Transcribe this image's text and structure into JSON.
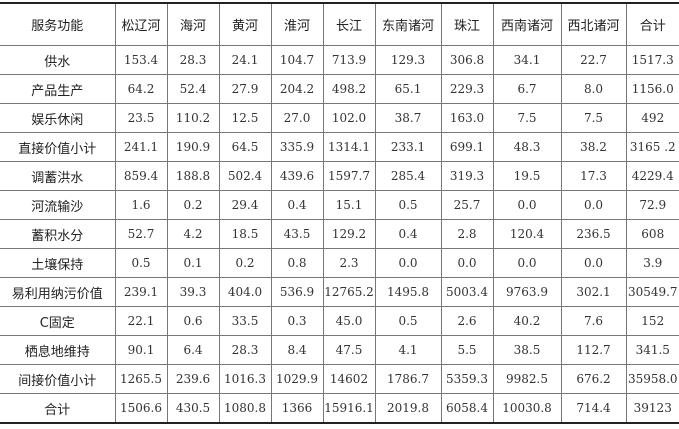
{
  "table": {
    "headers": [
      "服务功能",
      "松辽河",
      "海河",
      "黄河",
      "淮河",
      "长江",
      "东南诸河",
      "珠江",
      "西南诸河",
      "西北诸河",
      "合计"
    ],
    "rows": [
      [
        "供水",
        "153.4",
        "28.3",
        "24.1",
        "104.7",
        "713.9",
        "129.3",
        "306.8",
        "34.1",
        "22.7",
        "1517.3"
      ],
      [
        "产品生产",
        "64.2",
        "52.4",
        "27.9",
        "204.2",
        "498.2",
        "65.1",
        "229.3",
        "6.7",
        "8.0",
        "1156.0"
      ],
      [
        "娱乐休闲",
        "23.5",
        "110.2",
        "12.5",
        "27.0",
        "102.0",
        "38.7",
        "163.0",
        "7.5",
        "7.5",
        "492"
      ],
      [
        "直接价值小计",
        "241.1",
        "190.9",
        "64.5",
        "335.9",
        "1314.1",
        "233.1",
        "699.1",
        "48.3",
        "38.2",
        "3165 .2"
      ],
      [
        "调蓄洪水",
        "859.4",
        "188.8",
        "502.4",
        "439.6",
        "1597.7",
        "285.4",
        "319.3",
        "19.5",
        "17.3",
        "4229.4"
      ],
      [
        "河流输沙",
        "1.6",
        "0.2",
        "29.4",
        "0.4",
        "15.1",
        "0.5",
        "25.7",
        "0.0",
        "0.0",
        "72.9"
      ],
      [
        "蓄积水分",
        "52.7",
        "4.2",
        "18.5",
        "43.5",
        "129.2",
        "0.4",
        "2.8",
        "120.4",
        "236.5",
        "608"
      ],
      [
        "土壤保持",
        "0.5",
        "0.1",
        "0.2",
        "0.8",
        "2.3",
        "0.0",
        "0.0",
        "0.0",
        "0.0",
        "3.9"
      ],
      [
        "易利用纳污价值",
        "239.1",
        "39.3",
        "404.0",
        "536.9",
        "12765.2",
        "1495.8",
        "5003.4",
        "9763.9",
        "302.1",
        "30549.7"
      ],
      [
        "C固定",
        "22.1",
        "0.6",
        "33.5",
        "0.3",
        "45.0",
        "0.5",
        "2.6",
        "40.2",
        "7.6",
        "152"
      ],
      [
        "栖息地维持",
        "90.1",
        "6.4",
        "28.3",
        "8.4",
        "47.5",
        "4.1",
        "5.5",
        "38.5",
        "112.7",
        "341.5"
      ],
      [
        "间接价值小计",
        "1265.5",
        "239.6",
        "1016.3",
        "1029.9",
        "14602",
        "1786.7",
        "5359.3",
        "9982.5",
        "676.2",
        "35958.0"
      ],
      [
        "合计",
        "1506.6",
        "430.5",
        "1080.8",
        "1366",
        "15916.1",
        "2019.8",
        "6058.4",
        "10030.8",
        "714.4",
        "39123"
      ]
    ]
  }
}
